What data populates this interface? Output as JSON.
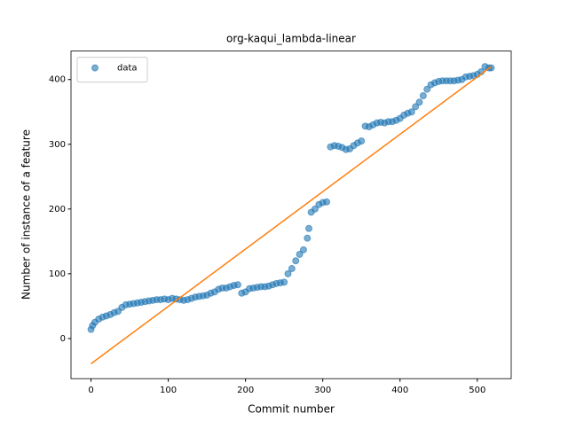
{
  "chart_data": {
    "type": "scatter",
    "title": "org-kaqui_lambda-linear",
    "x_label": "Commit number",
    "y_label": "Number of instance of a feature",
    "xlim": [
      -25.9,
      543.9
    ],
    "ylim": [
      -62,
      444
    ],
    "xticks": [
      0,
      100,
      200,
      300,
      400,
      500
    ],
    "yticks": [
      0,
      100,
      200,
      300,
      400
    ],
    "legend": "upper left",
    "series": [
      {
        "name": "data",
        "type": "scatter",
        "color": "#1f77b4",
        "x": [
          0,
          2,
          5,
          10,
          15,
          20,
          25,
          30,
          35,
          40,
          45,
          50,
          55,
          60,
          65,
          70,
          75,
          80,
          85,
          90,
          95,
          100,
          105,
          110,
          115,
          120,
          125,
          130,
          135,
          140,
          145,
          150,
          155,
          160,
          165,
          170,
          175,
          180,
          185,
          190,
          195,
          200,
          205,
          210,
          215,
          220,
          225,
          230,
          235,
          240,
          245,
          250,
          255,
          260,
          265,
          270,
          275,
          280,
          282,
          285,
          290,
          295,
          300,
          305,
          310,
          315,
          320,
          325,
          330,
          335,
          340,
          345,
          350,
          355,
          360,
          365,
          370,
          375,
          380,
          385,
          390,
          395,
          400,
          405,
          410,
          415,
          420,
          425,
          430,
          435,
          440,
          445,
          450,
          455,
          460,
          465,
          470,
          475,
          480,
          485,
          490,
          495,
          500,
          505,
          510,
          515,
          518
        ],
        "values": [
          14,
          20,
          25,
          30,
          33,
          35,
          37,
          40,
          42,
          48,
          52,
          53,
          54,
          55,
          56,
          57,
          58,
          59,
          60,
          60,
          61,
          60,
          62,
          61,
          60,
          59,
          60,
          62,
          64,
          65,
          66,
          67,
          70,
          72,
          76,
          78,
          78,
          80,
          82,
          83,
          70,
          72,
          77,
          78,
          79,
          80,
          80,
          81,
          83,
          85,
          86,
          87,
          100,
          108,
          120,
          130,
          137,
          155,
          170,
          195,
          200,
          207,
          210,
          211,
          296,
          298,
          297,
          295,
          292,
          293,
          298,
          302,
          305,
          328,
          327,
          330,
          333,
          334,
          333,
          335,
          335,
          337,
          340,
          345,
          348,
          350,
          358,
          365,
          375,
          385,
          392,
          395,
          397,
          398,
          398,
          398,
          398,
          399,
          400,
          404,
          405,
          406,
          408,
          412,
          420,
          418,
          418
        ]
      },
      {
        "type": "line",
        "color": "#ff7f0e",
        "x": [
          0,
          518
        ],
        "values": [
          -39,
          420
        ]
      }
    ]
  }
}
